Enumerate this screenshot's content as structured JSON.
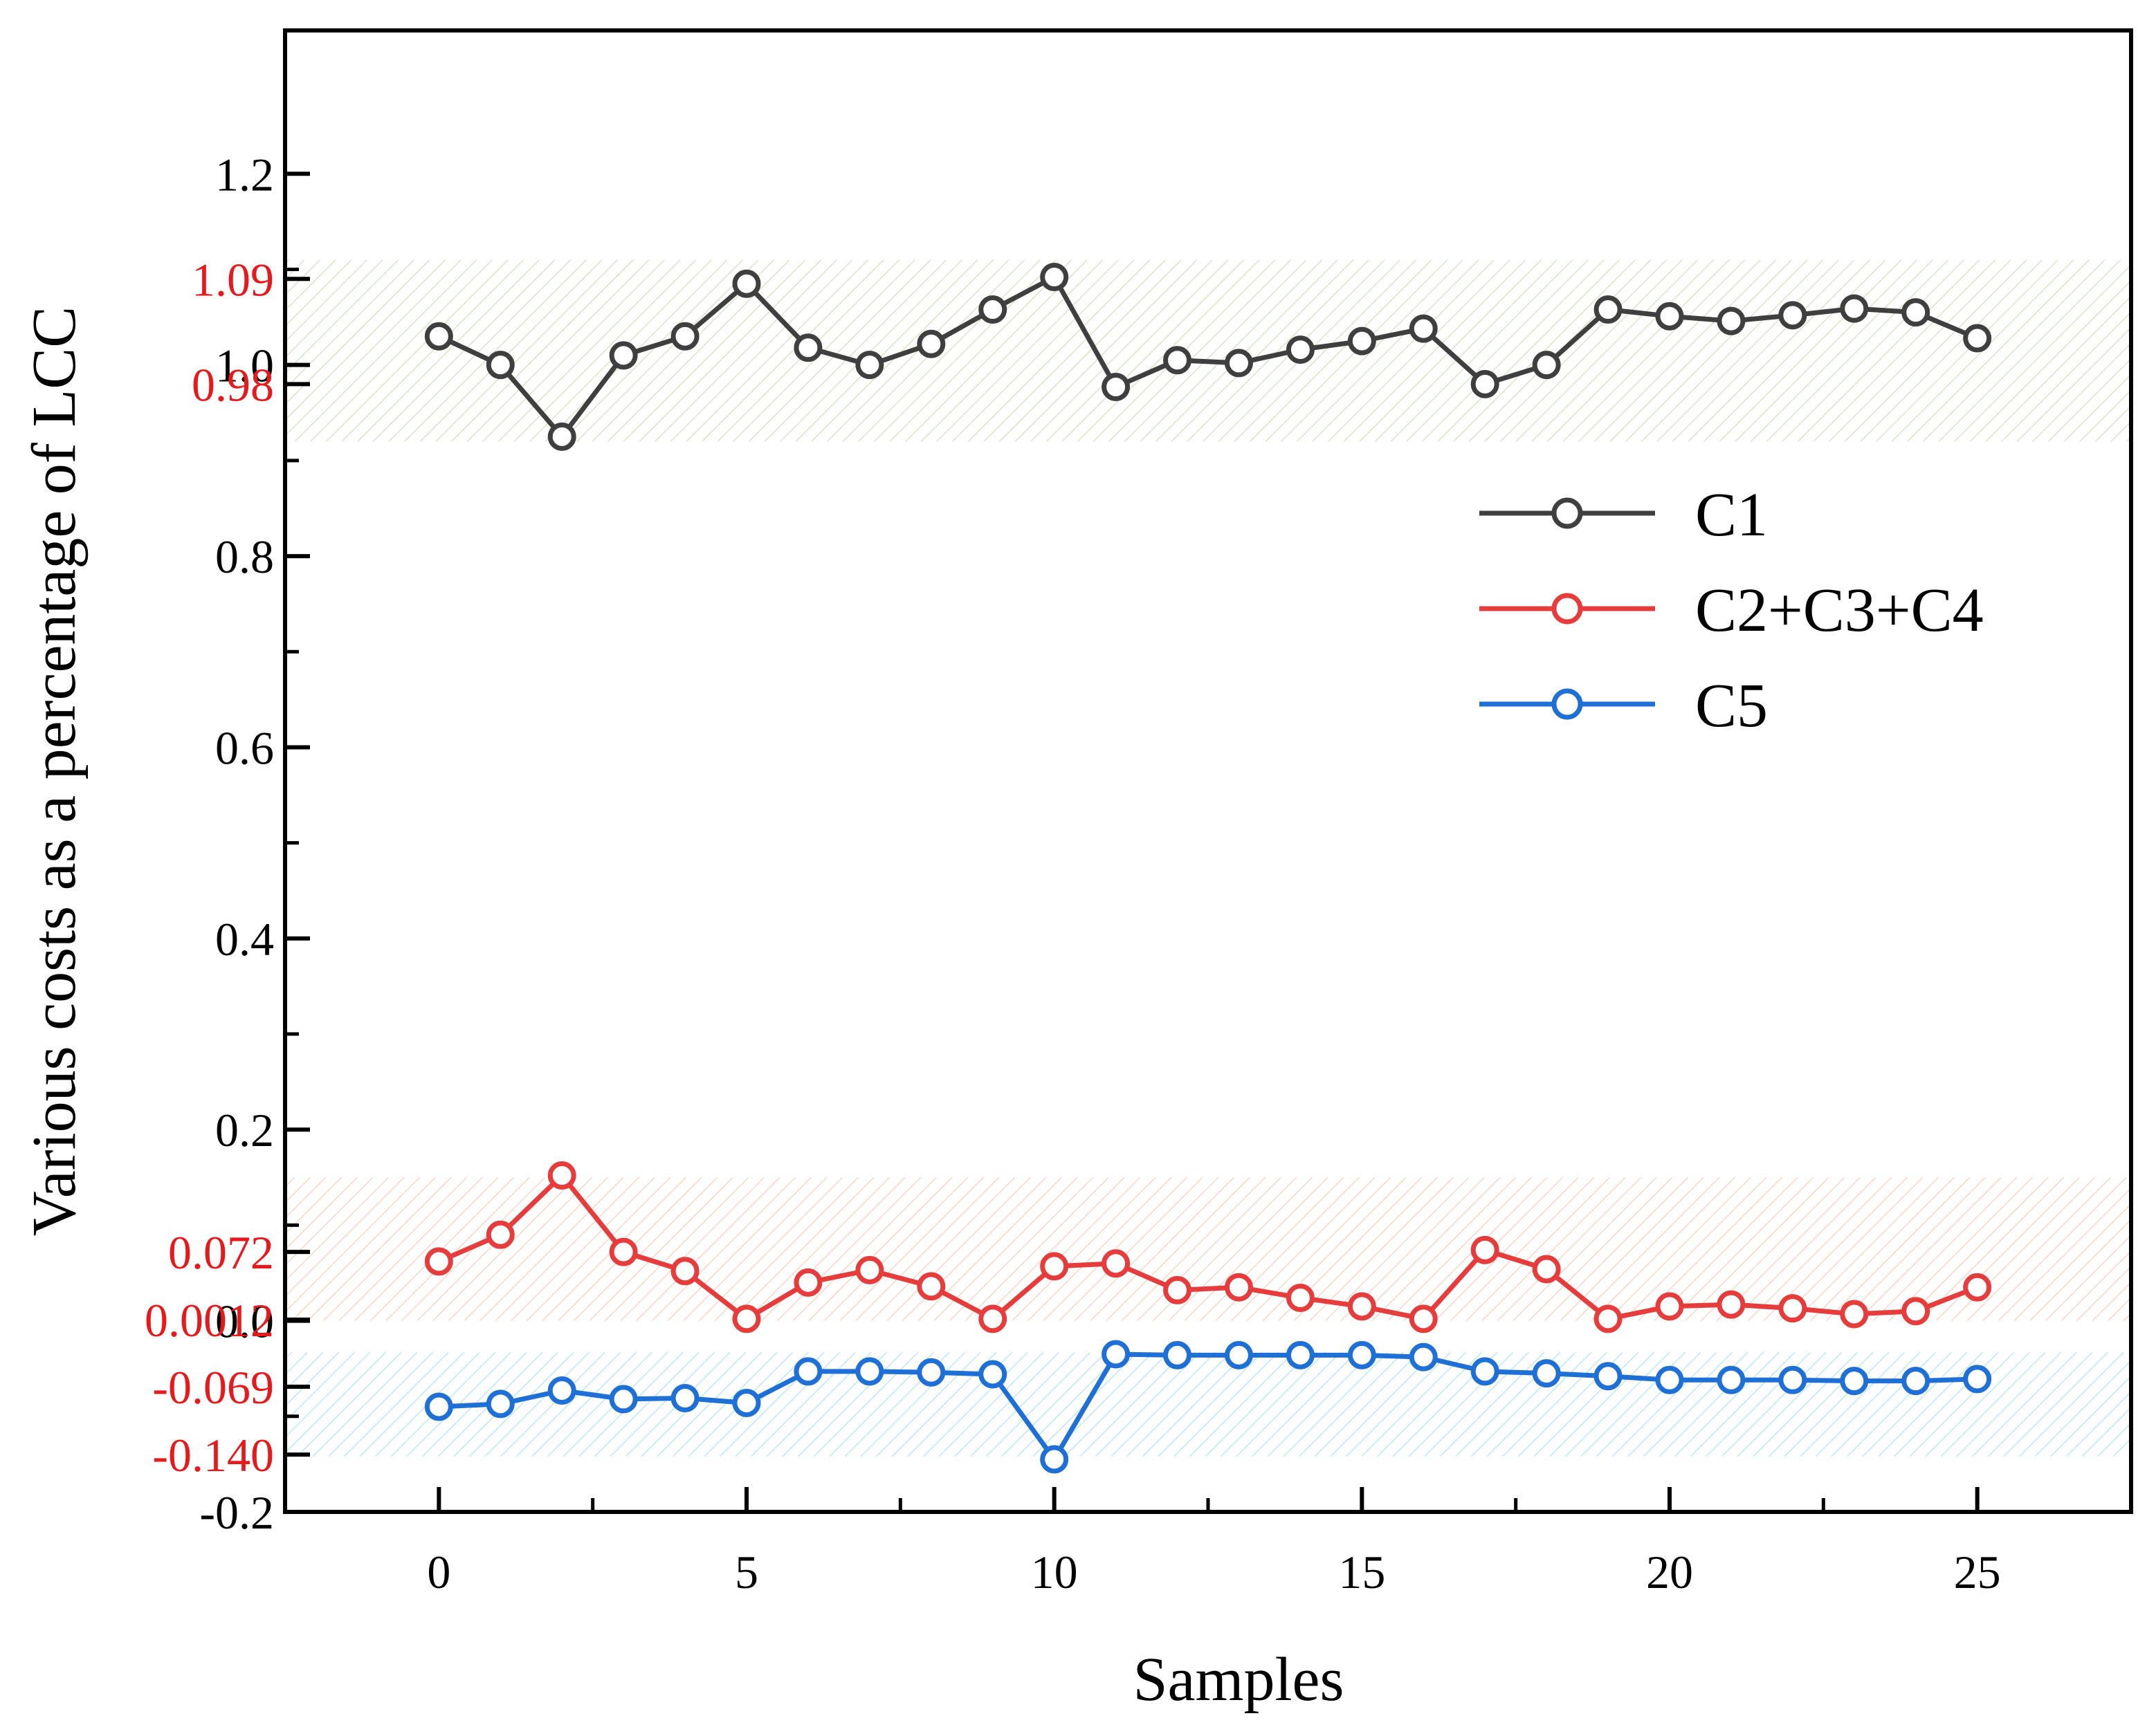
{
  "chart_data": {
    "type": "line",
    "xlabel": "Samples",
    "ylabel": "Various costs as a percentage of  LCC",
    "xlim": [
      -2.5,
      27.5
    ],
    "ylim": [
      -0.2,
      1.35
    ],
    "x_ticks": [
      {
        "value": 0,
        "label": "0"
      },
      {
        "value": 5,
        "label": "5"
      },
      {
        "value": 10,
        "label": "10"
      },
      {
        "value": 15,
        "label": "15"
      },
      {
        "value": 20,
        "label": "20"
      },
      {
        "value": 25,
        "label": "25"
      }
    ],
    "x_minor_ticks": [
      2.5,
      7.5,
      12.5,
      17.5,
      22.5
    ],
    "y_ticks": [
      {
        "value": 1.2,
        "label": "1.2"
      },
      {
        "value": 1.0,
        "label": "1.0"
      },
      {
        "value": 0.8,
        "label": "0.8"
      },
      {
        "value": 0.6,
        "label": "0.6"
      },
      {
        "value": 0.4,
        "label": "0.4"
      },
      {
        "value": 0.2,
        "label": "0.2"
      },
      {
        "value": 0.0,
        "label": "0.0"
      },
      {
        "value": -0.2,
        "label": "-0.2"
      }
    ],
    "y_minor_ticks": [
      1.1,
      0.9,
      0.7,
      0.5,
      0.3,
      0.1,
      -0.1
    ],
    "y_marker_labels": [
      {
        "value": 1.09,
        "label": "1.09"
      },
      {
        "value": 0.98,
        "label": "0.98"
      },
      {
        "value": 0.072,
        "label": "0.072"
      },
      {
        "value": 0.0012,
        "label": "0.0012"
      },
      {
        "value": -0.069,
        "label": "-0.069"
      },
      {
        "value": -0.14,
        "label": "-0.140"
      }
    ],
    "bands": [
      {
        "name": "C1 range",
        "from": 0.92,
        "to": 1.11,
        "color": "#b8cf9f"
      },
      {
        "name": "C2+C3+C4 range",
        "from": 0.0,
        "to": 0.15,
        "color": "#f6b59a"
      },
      {
        "name": "C5 range",
        "from": -0.142,
        "to": -0.033,
        "color": "#7fd8ec"
      }
    ],
    "x": [
      0,
      1,
      2,
      3,
      4,
      5,
      6,
      7,
      8,
      9,
      10,
      11,
      12,
      13,
      14,
      15,
      16,
      17,
      18,
      19,
      20,
      21,
      22,
      23,
      24,
      25
    ],
    "series": [
      {
        "name": "C1",
        "color": "#3f3f3f",
        "values": [
          1.03,
          1.0,
          0.925,
          1.01,
          1.03,
          1.085,
          1.018,
          1.0,
          1.022,
          1.058,
          1.092,
          0.977,
          1.005,
          1.002,
          1.016,
          1.025,
          1.038,
          0.98,
          1.0,
          1.058,
          1.051,
          1.046,
          1.052,
          1.059,
          1.055,
          1.028
        ]
      },
      {
        "name": "C2+C3+C4",
        "color": "#e63c3c",
        "values": [
          0.062,
          0.09,
          0.152,
          0.072,
          0.052,
          0.002,
          0.04,
          0.053,
          0.036,
          0.002,
          0.057,
          0.06,
          0.032,
          0.035,
          0.024,
          0.015,
          0.002,
          0.074,
          0.054,
          0.002,
          0.015,
          0.017,
          0.013,
          0.007,
          0.01,
          0.035
        ]
      },
      {
        "name": "C5",
        "color": "#1e6fd6",
        "values": [
          -0.09,
          -0.087,
          -0.073,
          -0.082,
          -0.081,
          -0.086,
          -0.053,
          -0.053,
          -0.054,
          -0.056,
          -0.145,
          -0.035,
          -0.036,
          -0.036,
          -0.036,
          -0.036,
          -0.038,
          -0.053,
          -0.055,
          -0.058,
          -0.062,
          -0.062,
          -0.062,
          -0.063,
          -0.063,
          -0.061
        ]
      }
    ],
    "legend_position": "right"
  }
}
